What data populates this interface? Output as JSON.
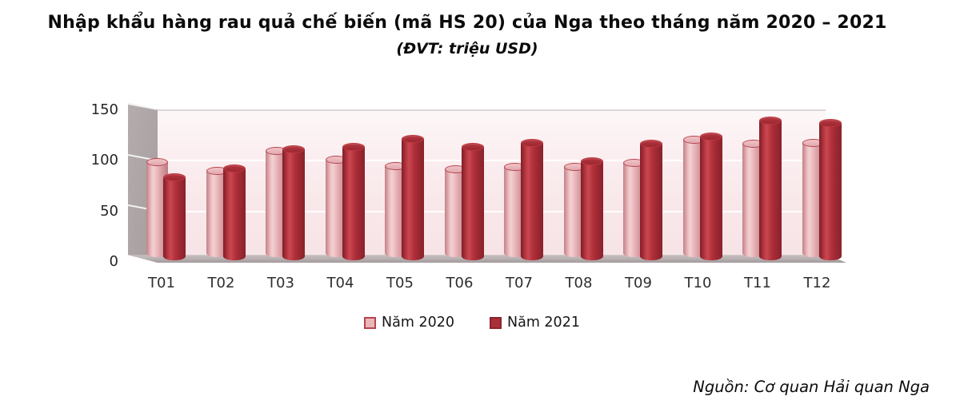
{
  "page": {
    "title": "Nhập khẩu hàng rau quả chế biến (mã HS 20) của Nga theo tháng năm 2020 – 2021",
    "subtitle": "(ĐVT: triệu USD)",
    "source": "Nguồn: Cơ quan Hải quan Nga"
  },
  "chart_data": {
    "type": "bar",
    "style": "3d-cylinder",
    "title": "Nhập khẩu hàng rau quả chế biến (mã HS 20) của Nga theo tháng năm 2020 – 2021",
    "unit_label": "(ĐVT: triệu USD)",
    "categories": [
      "T01",
      "T02",
      "T03",
      "T04",
      "T05",
      "T06",
      "T07",
      "T08",
      "T09",
      "T10",
      "T11",
      "T12"
    ],
    "series": [
      {
        "name": "Năm 2020",
        "color": "#e9b6ba",
        "values": [
          94,
          85,
          105,
          96,
          90,
          87,
          89,
          89,
          93,
          116,
          112,
          113
        ]
      },
      {
        "name": "Năm 2021",
        "color": "#a93039",
        "values": [
          82,
          91,
          110,
          112,
          120,
          112,
          116,
          98,
          115,
          122,
          138,
          136
        ]
      }
    ],
    "xlabel": "",
    "ylabel": "",
    "ylim": [
      0,
      150
    ],
    "yticks": [
      0,
      50,
      100,
      150
    ],
    "grid": true,
    "legend_position": "bottom",
    "colors": {
      "plot_background_top": "#fdf7f7",
      "plot_background_bottom": "#f7e3e5",
      "wall": "#aba3a4",
      "floor": "#b9b1b2",
      "series_2020_light": "#e9b6ba",
      "series_2021_dark": "#a93039"
    }
  }
}
